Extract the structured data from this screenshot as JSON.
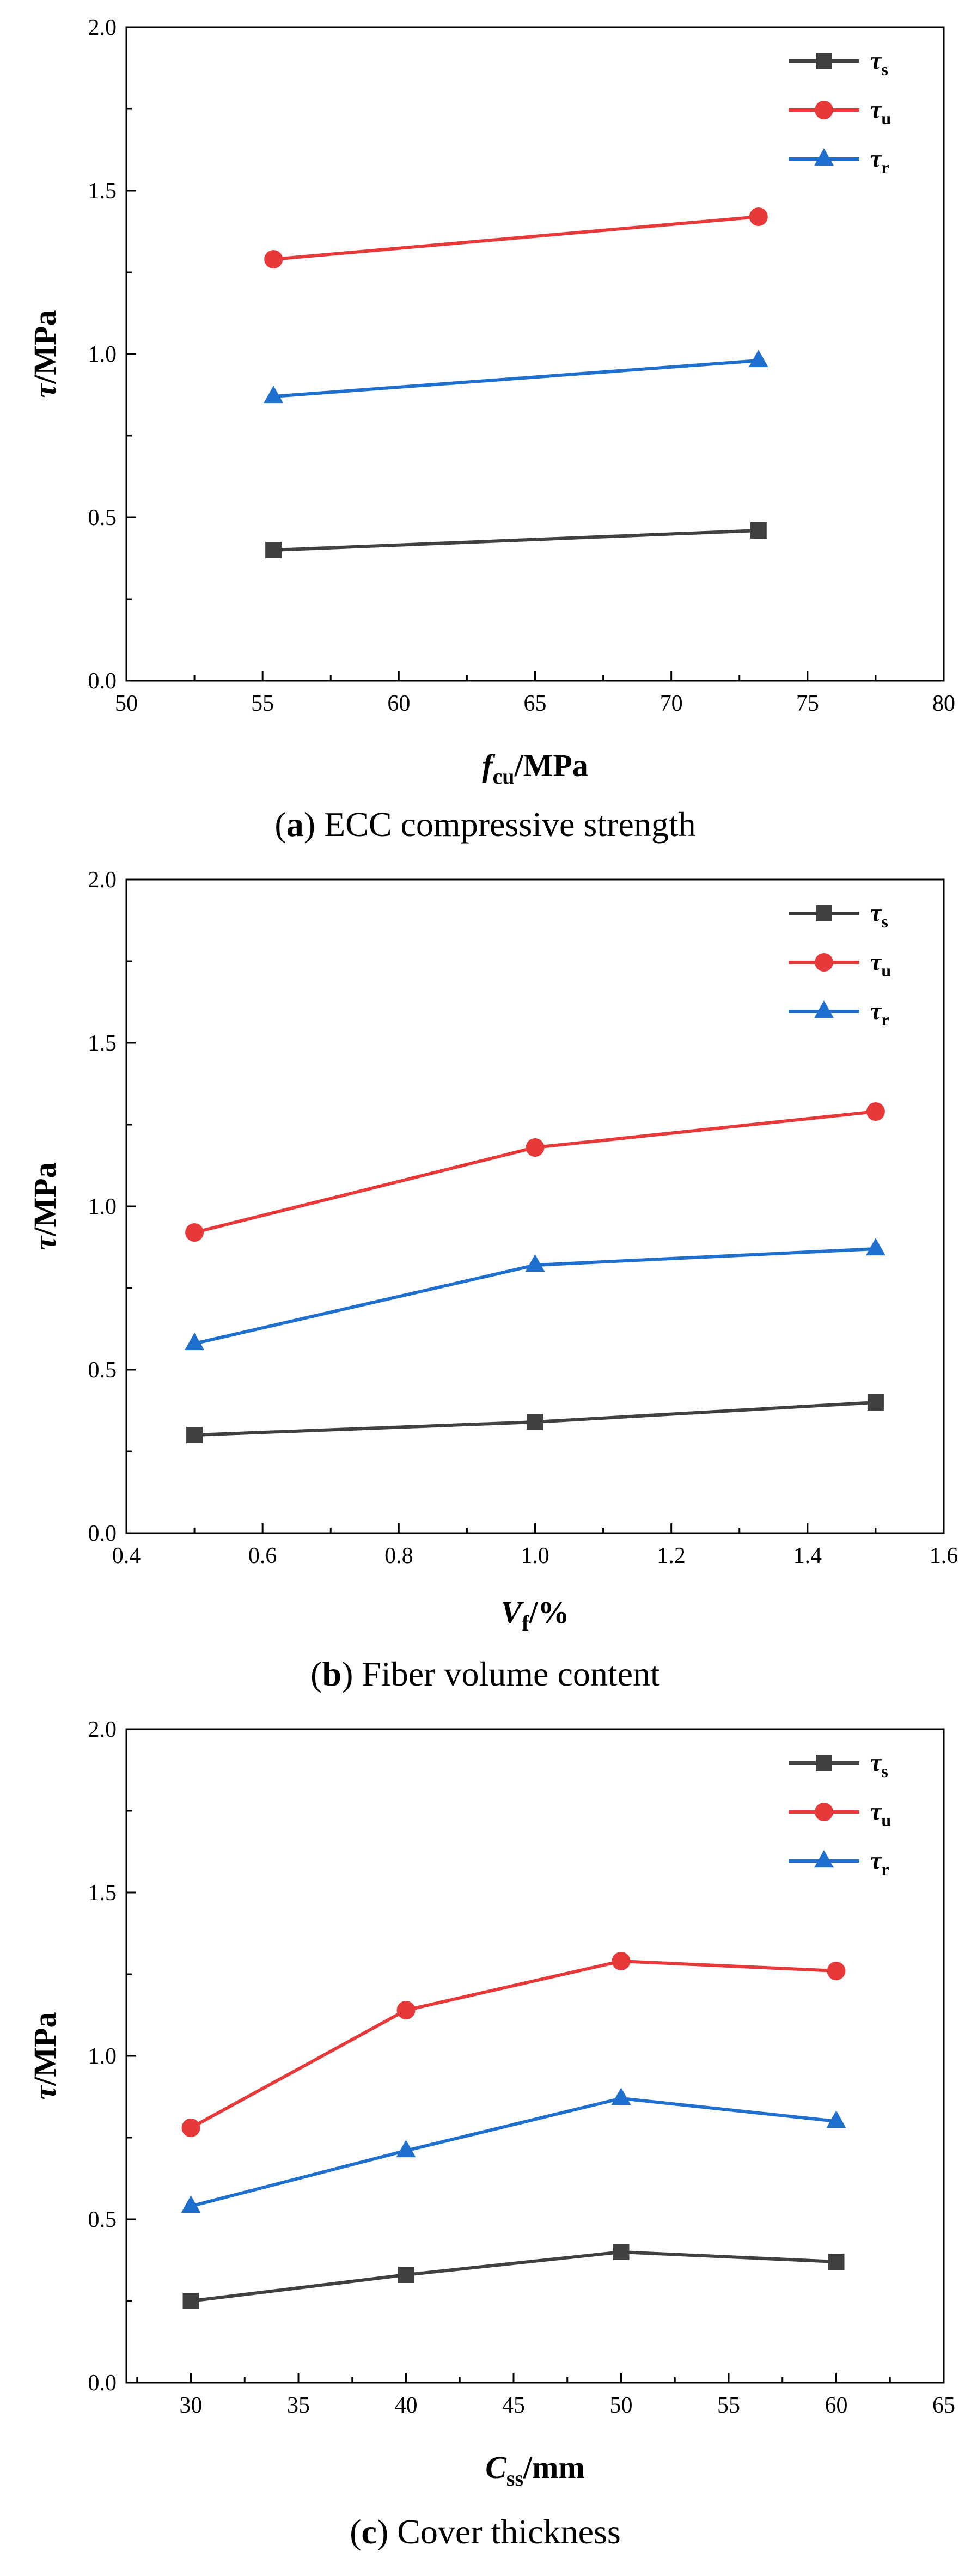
{
  "chart_data": [
    {
      "type": "line",
      "caption": {
        "letter": "a",
        "text": " ECC compressive strength"
      },
      "xlabel": {
        "main": "f",
        "sub": "cu",
        "unit": "/MPa"
      },
      "ylabel": {
        "main": "τ",
        "unit": "/MPa"
      },
      "xlim": [
        50,
        80
      ],
      "ylim": [
        0,
        2.0
      ],
      "xticks": [
        "50",
        "55",
        "60",
        "65",
        "70",
        "75",
        "80"
      ],
      "yticks": [
        "0.0",
        "0.5",
        "1.0",
        "1.5",
        "2.0"
      ],
      "legend_position": "top-right",
      "series": [
        {
          "name": "τ",
          "sub": "s",
          "color": "#404040",
          "marker": "square",
          "x": [
            55.4,
            73.2
          ],
          "values": [
            0.4,
            0.46
          ]
        },
        {
          "name": "τ",
          "sub": "u",
          "color": "#e8393a",
          "marker": "circle",
          "x": [
            55.4,
            73.2
          ],
          "values": [
            1.29,
            1.42
          ]
        },
        {
          "name": "τ",
          "sub": "r",
          "color": "#1f6fcf",
          "marker": "triangle",
          "x": [
            55.4,
            73.2
          ],
          "values": [
            0.87,
            0.98
          ]
        }
      ]
    },
    {
      "type": "line",
      "caption": {
        "letter": "b",
        "text": " Fiber volume content"
      },
      "xlabel": {
        "main": "V",
        "sub": "f",
        "unit": "/%"
      },
      "ylabel": {
        "main": "τ",
        "unit": "/MPa"
      },
      "xlim": [
        0.4,
        1.6
      ],
      "ylim": [
        0,
        2.0
      ],
      "xticks": [
        "0.4",
        "0.6",
        "0.8",
        "1.0",
        "1.2",
        "1.4",
        "1.6"
      ],
      "yticks": [
        "0.0",
        "0.5",
        "1.0",
        "1.5",
        "2.0"
      ],
      "legend_position": "top-right",
      "series": [
        {
          "name": "τ",
          "sub": "s",
          "color": "#404040",
          "marker": "square",
          "x": [
            0.5,
            1.0,
            1.5
          ],
          "values": [
            0.3,
            0.34,
            0.4
          ]
        },
        {
          "name": "τ",
          "sub": "u",
          "color": "#e8393a",
          "marker": "circle",
          "x": [
            0.5,
            1.0,
            1.5
          ],
          "values": [
            0.92,
            1.18,
            1.29
          ]
        },
        {
          "name": "τ",
          "sub": "r",
          "color": "#1f6fcf",
          "marker": "triangle",
          "x": [
            0.5,
            1.0,
            1.5
          ],
          "values": [
            0.58,
            0.82,
            0.87
          ]
        }
      ]
    },
    {
      "type": "line",
      "caption": {
        "letter": "c",
        "text": " Cover thickness"
      },
      "xlabel": {
        "main": "C",
        "sub": "ss",
        "unit": "/mm"
      },
      "ylabel": {
        "main": "τ",
        "unit": "/MPa"
      },
      "xlim": [
        27,
        65
      ],
      "ylim": [
        0,
        2.0
      ],
      "xticks": [
        "30",
        "35",
        "40",
        "45",
        "50",
        "55",
        "60",
        "65"
      ],
      "yticks": [
        "0.0",
        "0.5",
        "1.0",
        "1.5",
        "2.0"
      ],
      "legend_position": "top-right",
      "series": [
        {
          "name": "τ",
          "sub": "s",
          "color": "#404040",
          "marker": "square",
          "x": [
            30,
            40,
            50,
            60
          ],
          "values": [
            0.25,
            0.33,
            0.4,
            0.37
          ]
        },
        {
          "name": "τ",
          "sub": "u",
          "color": "#e8393a",
          "marker": "circle",
          "x": [
            30,
            40,
            50,
            60
          ],
          "values": [
            0.78,
            1.14,
            1.29,
            1.26
          ]
        },
        {
          "name": "τ",
          "sub": "r",
          "color": "#1f6fcf",
          "marker": "triangle",
          "x": [
            30,
            40,
            50,
            60
          ],
          "values": [
            0.54,
            0.71,
            0.87,
            0.8
          ]
        }
      ]
    }
  ]
}
